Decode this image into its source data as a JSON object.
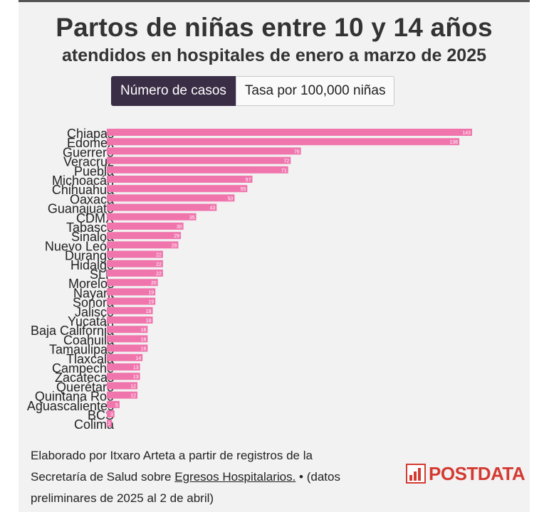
{
  "title": "Partos de niñas entre 10 y 14 años",
  "subtitle": "atendidos en hospitales de enero a marzo de 2025",
  "tabs": {
    "active_label": "Número de casos",
    "inactive_label": "Tasa por 100,000 niñas"
  },
  "colors": {
    "bar": "#f075ad",
    "tab_active": "#3a2d46",
    "logo": "#d43a32"
  },
  "chart_data": {
    "type": "bar",
    "orientation": "horizontal",
    "categories": [
      "Chiapas",
      "Edomex",
      "Guerrero",
      "Veracruz",
      "Puebla",
      "Michoacán",
      "Chihuahua",
      "Oaxaca",
      "Guanajuato",
      "CDMX",
      "Tabasco",
      "Sinaloa",
      "Nuevo León",
      "Durango",
      "Hidalgo",
      "SLP",
      "Morelos",
      "Nayarit",
      "Sonora",
      "Jalisco",
      "Yucatán",
      "Baja California",
      "Coahuila",
      "Tamaulipas",
      "Tlaxcala",
      "Campeche",
      "Zacatecas",
      "Querétaro",
      "Quintana Roo",
      "Aguascalientes",
      "BCS",
      "Colima"
    ],
    "values": [
      143,
      138,
      76,
      72,
      71,
      57,
      55,
      50,
      43,
      35,
      30,
      29,
      28,
      22,
      22,
      22,
      20,
      19,
      19,
      18,
      18,
      16,
      16,
      16,
      14,
      13,
      13,
      12,
      12,
      5,
      3,
      2
    ],
    "title": "",
    "xlabel": "",
    "ylabel": "",
    "xlim": [
      0,
      143
    ]
  },
  "footer": {
    "line1": "Elaborado por Itxaro Arteta a partir de registros de la",
    "line2_pre": "Secretaría de Salud sobre ",
    "line2_link": "Egresos Hospitalarios.",
    "line2_post": " • (datos",
    "line3": "preliminares de 2025 al 2 de abril)"
  },
  "logo": {
    "text": "POSTDATA",
    "icon": "bar-chart-logo-icon"
  }
}
